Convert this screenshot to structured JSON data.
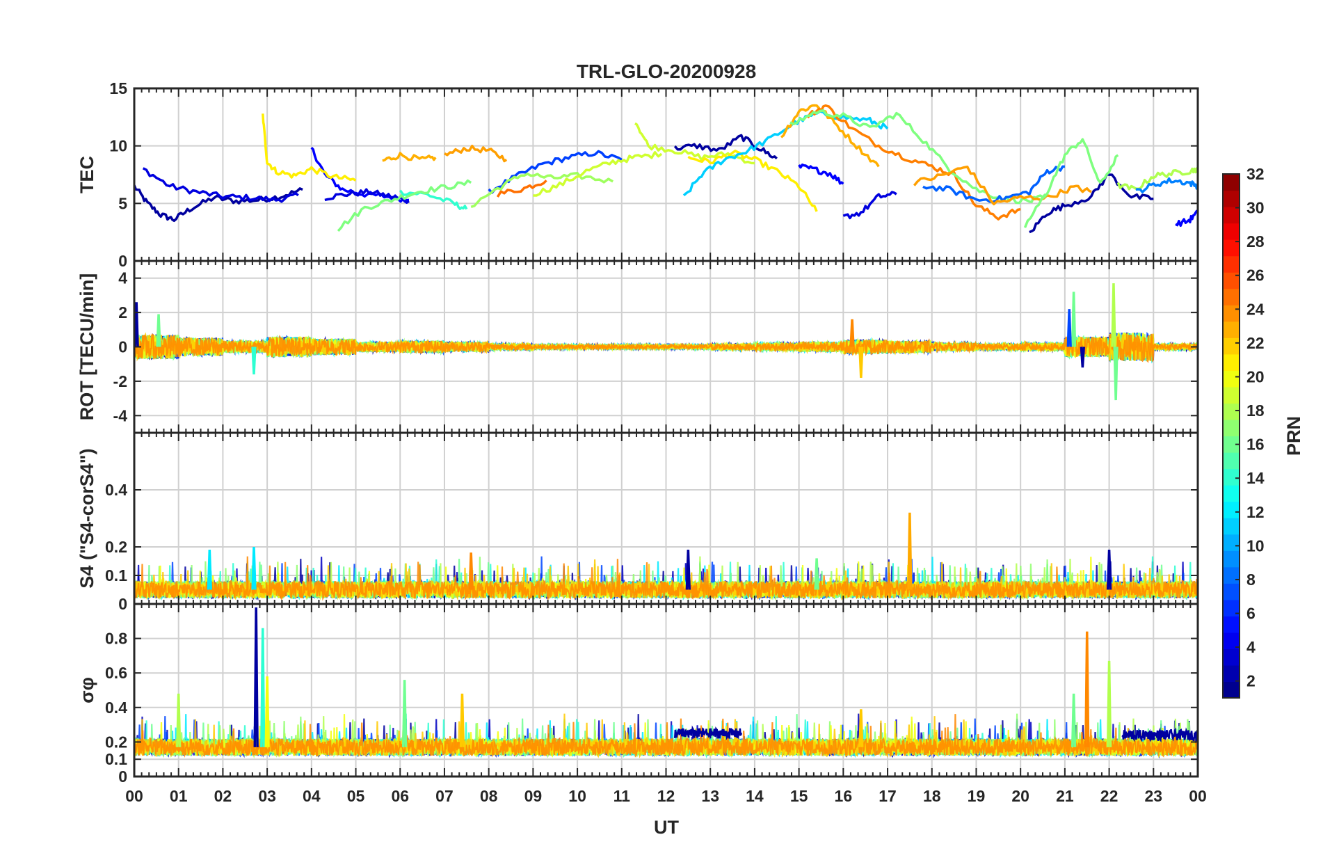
{
  "chart_data": {
    "type": "line",
    "title": "TRL-GLO-20200928",
    "xlabel": "UT",
    "x_tick_labels": [
      "00",
      "01",
      "02",
      "03",
      "04",
      "05",
      "06",
      "07",
      "08",
      "09",
      "10",
      "11",
      "12",
      "13",
      "14",
      "15",
      "16",
      "17",
      "18",
      "19",
      "20",
      "21",
      "22",
      "23",
      "00"
    ],
    "xlim": [
      0,
      24
    ],
    "colorbar": {
      "label": "PRN",
      "colormap": "jet",
      "range": [
        1,
        32
      ],
      "tick_labels": [
        "2",
        "4",
        "6",
        "8",
        "10",
        "12",
        "14",
        "16",
        "18",
        "20",
        "22",
        "24",
        "26",
        "28",
        "30",
        "32"
      ],
      "tick_values": [
        2,
        4,
        6,
        8,
        10,
        12,
        14,
        16,
        18,
        20,
        22,
        24,
        26,
        28,
        30,
        32
      ]
    },
    "panels": [
      {
        "id": "tec",
        "ylabel": "TEC",
        "ylim": [
          0,
          15
        ],
        "y_ticks": [
          0,
          5,
          10,
          15
        ],
        "y_tick_labels": [
          "0",
          "5",
          "10",
          "15"
        ],
        "series": [
          {
            "prn": 2,
            "color": "#00009f",
            "x": [
              0,
              0.3,
              0.6,
              0.9,
              1.3,
              1.8,
              2.3,
              2.8,
              3.3,
              3.8
            ],
            "y": [
              6.5,
              5.0,
              4.0,
              3.6,
              4.6,
              5.5,
              5.2,
              5.3,
              5.6,
              6.2
            ]
          },
          {
            "prn": 3,
            "color": "#0000df",
            "x": [
              0.2,
              0.8,
              1.4,
              2.0,
              2.6,
              3.2,
              3.7
            ],
            "y": [
              8.0,
              6.5,
              6.0,
              5.6,
              5.5,
              5.3,
              5.7
            ]
          },
          {
            "prn": 4,
            "color": "#0000ff",
            "x": [
              4.0,
              4.3,
              4.7,
              5.2,
              5.7,
              6.2
            ],
            "y": [
              9.8,
              7.5,
              6.2,
              5.8,
              5.6,
              5.3
            ]
          },
          {
            "prn": 3,
            "color": "#0000df",
            "x": [
              4.3,
              4.8,
              5.3,
              5.8,
              6.2
            ],
            "y": [
              5.5,
              5.8,
              6.0,
              5.6,
              5.2
            ]
          },
          {
            "prn": 14,
            "color": "#30ffcf",
            "x": [
              6.0,
              6.6,
              7.2,
              7.5
            ],
            "y": [
              6.0,
              5.8,
              5.0,
              4.5
            ]
          },
          {
            "prn": 7,
            "color": "#0040ff",
            "x": [
              8.0,
              8.6,
              9.2,
              9.8,
              10.4,
              11.0
            ],
            "y": [
              6.0,
              7.3,
              8.4,
              9.0,
              9.4,
              8.8
            ]
          },
          {
            "prn": 20,
            "color": "#ffef00",
            "x": [
              2.9,
              3.0,
              3.2,
              3.6,
              4.0,
              4.5,
              5.0
            ],
            "y": [
              12.7,
              8.6,
              7.8,
              7.4,
              8.0,
              7.3,
              7.0
            ]
          },
          {
            "prn": 22,
            "color": "#ffaf00",
            "x": [
              5.6,
              6.0,
              6.5,
              6.8
            ],
            "y": [
              8.7,
              9.2,
              8.8,
              9.0
            ]
          },
          {
            "prn": 23,
            "color": "#ff9f00",
            "x": [
              7.0,
              7.5,
              8.0,
              8.4
            ],
            "y": [
              9.2,
              9.8,
              9.6,
              8.8
            ]
          },
          {
            "prn": 25,
            "color": "#ff6f00",
            "x": [
              8.2,
              8.8,
              9.3
            ],
            "y": [
              5.8,
              6.3,
              7.0
            ]
          },
          {
            "prn": 16,
            "color": "#7fff7f",
            "x": [
              4.6,
              5.2,
              5.8,
              6.4,
              7.0,
              7.6
            ],
            "y": [
              2.8,
              4.6,
              5.3,
              6.0,
              6.4,
              6.8
            ]
          },
          {
            "prn": 17,
            "color": "#9fff5f",
            "x": [
              7.6,
              8.2,
              8.8,
              9.4,
              10.0,
              10.8
            ],
            "y": [
              4.8,
              6.3,
              7.6,
              7.2,
              7.4,
              6.9
            ]
          },
          {
            "prn": 19,
            "color": "#cfff30",
            "x": [
              9.0,
              9.6,
              10.2,
              10.8,
              11.3,
              11.9
            ],
            "y": [
              5.8,
              6.6,
              7.8,
              8.6,
              9.0,
              9.3
            ]
          },
          {
            "prn": 19,
            "color": "#cfff30",
            "x": [
              11.3,
              11.6,
              12.2,
              12.8,
              13.4,
              14.0
            ],
            "y": [
              12.2,
              10.0,
              9.6,
              9.0,
              9.3,
              8.5
            ]
          },
          {
            "prn": 2,
            "color": "#00009f",
            "x": [
              12.2,
              12.7,
              13.2,
              13.7,
              14.1,
              14.5
            ],
            "y": [
              9.8,
              10.0,
              9.6,
              10.8,
              9.8,
              8.9
            ]
          },
          {
            "prn": 20,
            "color": "#ffef00",
            "x": [
              12.5,
              13.0,
              13.5,
              14.0,
              14.5,
              15.0,
              15.4
            ],
            "y": [
              9.0,
              8.6,
              9.4,
              8.8,
              7.8,
              6.5,
              4.3
            ]
          },
          {
            "prn": 12,
            "color": "#00cfff",
            "x": [
              12.4,
              12.8,
              13.3,
              13.8,
              14.3,
              14.9,
              15.4,
              16.0,
              16.6,
              17.0
            ],
            "y": [
              5.5,
              7.5,
              8.8,
              9.5,
              10.5,
              12.0,
              12.8,
              12.5,
              12.2,
              11.5
            ]
          },
          {
            "prn": 4,
            "color": "#0000ff",
            "x": [
              15.0,
              15.3,
              15.7,
              16.0
            ],
            "y": [
              8.2,
              8.0,
              7.6,
              6.7
            ]
          },
          {
            "prn": 22,
            "color": "#ffaf00",
            "x": [
              14.6,
              15.0,
              15.4,
              15.8,
              16.3,
              16.8
            ],
            "y": [
              10.8,
              13.0,
              13.6,
              12.0,
              10.0,
              8.2
            ]
          },
          {
            "prn": 24,
            "color": "#ff7f00",
            "x": [
              15.2,
              15.6,
              16.2,
              16.8,
              17.4,
              18.0,
              18.5,
              19.0,
              19.5,
              20.0
            ],
            "y": [
              12.6,
              13.5,
              11.5,
              10.0,
              9.0,
              8.2,
              7.5,
              4.8,
              3.8,
              4.5
            ]
          },
          {
            "prn": 16,
            "color": "#7fff7f",
            "x": [
              14.8,
              15.4,
              16.0,
              16.6,
              17.2,
              17.8,
              18.4,
              19.0,
              19.6,
              20.2,
              20.6
            ],
            "y": [
              11.8,
              13.0,
              12.6,
              11.5,
              12.8,
              10.5,
              8.0,
              6.2,
              5.4,
              5.2,
              5.6
            ]
          },
          {
            "prn": 3,
            "color": "#0000df",
            "x": [
              16.0,
              16.4,
              16.8,
              17.2
            ],
            "y": [
              3.8,
              4.2,
              5.6,
              5.8
            ]
          },
          {
            "prn": 8,
            "color": "#0060ff",
            "x": [
              17.8,
              18.4,
              19.0,
              19.6,
              20.2,
              20.6,
              21.0
            ],
            "y": [
              6.5,
              6.2,
              5.3,
              5.4,
              6.0,
              7.8,
              8.2
            ]
          },
          {
            "prn": 23,
            "color": "#ff9f00",
            "x": [
              17.6,
              18.2,
              18.8,
              19.4,
              20.0,
              20.6,
              21.2,
              21.6
            ],
            "y": [
              6.8,
              7.4,
              8.2,
              5.0,
              5.5,
              5.5,
              6.4,
              6.0
            ]
          },
          {
            "prn": 2,
            "color": "#00009f",
            "x": [
              20.2,
              20.6,
              21.0,
              21.6,
              22.0,
              22.5,
              23.0
            ],
            "y": [
              2.4,
              4.2,
              4.8,
              5.6,
              7.6,
              5.6,
              5.4
            ]
          },
          {
            "prn": 16,
            "color": "#7fff7f",
            "x": [
              20.1,
              20.6,
              21.0,
              21.4,
              21.8,
              22.2
            ],
            "y": [
              3.0,
              6.0,
              9.2,
              10.6,
              6.6,
              9.2
            ]
          },
          {
            "prn": 18,
            "color": "#afff4f",
            "x": [
              22.2,
              22.6,
              23.0,
              23.4,
              23.8,
              24.0
            ],
            "y": [
              6.6,
              6.2,
              7.4,
              7.6,
              7.8,
              8.0
            ]
          },
          {
            "prn": 9,
            "color": "#0080ff",
            "x": [
              22.6,
              23.0,
              23.4,
              23.8,
              24.0
            ],
            "y": [
              6.0,
              6.6,
              7.0,
              6.8,
              6.5
            ]
          },
          {
            "prn": 4,
            "color": "#0000ff",
            "x": [
              23.5,
              23.8,
              24.0
            ],
            "y": [
              3.2,
              3.5,
              4.2
            ]
          }
        ]
      },
      {
        "id": "rot",
        "ylabel": "ROT [TECU/min]",
        "ylim": [
          -5,
          5
        ],
        "y_ticks": [
          -4,
          -2,
          0,
          2,
          4
        ],
        "y_tick_labels": [
          "-4",
          "-2",
          "0",
          "2",
          "4"
        ],
        "series_summary": {
          "baseline": 0,
          "noise_amplitude_by_hour": [
            1.2,
            0.9,
            0.6,
            1.0,
            0.8,
            0.5,
            0.6,
            0.5,
            0.3,
            0.2,
            0.2,
            0.2,
            0.2,
            0.3,
            0.4,
            0.5,
            0.7,
            0.6,
            0.4,
            0.3,
            0.4,
            1.0,
            1.4,
            0.3
          ],
          "spikes": [
            {
              "x": 0.05,
              "y": 2.6,
              "prn": 2
            },
            {
              "x": 0.55,
              "y": 1.9,
              "prn": 16
            },
            {
              "x": 2.7,
              "y": -1.6,
              "prn": 14
            },
            {
              "x": 16.2,
              "y": 1.6,
              "prn": 24
            },
            {
              "x": 16.4,
              "y": -1.8,
              "prn": 22
            },
            {
              "x": 21.2,
              "y": 3.2,
              "prn": 16
            },
            {
              "x": 21.1,
              "y": 2.2,
              "prn": 7
            },
            {
              "x": 22.1,
              "y": 3.7,
              "prn": 18
            },
            {
              "x": 22.15,
              "y": -3.1,
              "prn": 16
            },
            {
              "x": 21.4,
              "y": -1.2,
              "prn": 2
            }
          ]
        }
      },
      {
        "id": "s4",
        "ylabel": "S4 (\"S4-corS4\")",
        "ylim": [
          0,
          0.6
        ],
        "y_ticks": [
          0,
          0.1,
          0.2,
          0.4
        ],
        "y_tick_labels": [
          "0",
          "0.1",
          "0.2",
          "0.4"
        ],
        "series_summary": {
          "baseline_range": [
            0.02,
            0.08
          ],
          "spikes": [
            {
              "x": 2.7,
              "y": 0.2,
              "prn": 12
            },
            {
              "x": 1.7,
              "y": 0.19,
              "prn": 12
            },
            {
              "x": 7.6,
              "y": 0.18,
              "prn": 24
            },
            {
              "x": 12.5,
              "y": 0.19,
              "prn": 2
            },
            {
              "x": 17.5,
              "y": 0.32,
              "prn": 23
            },
            {
              "x": 22.0,
              "y": 0.19,
              "prn": 2
            },
            {
              "x": 15.4,
              "y": 0.16,
              "prn": 16
            }
          ]
        }
      },
      {
        "id": "sigma_phi",
        "ylabel": "σφ",
        "ylim": [
          0,
          1
        ],
        "y_ticks": [
          0,
          0.1,
          0.2,
          0.4,
          0.6,
          0.8
        ],
        "y_tick_labels": [
          "0",
          "0.1",
          "0.2",
          "0.4",
          "0.6",
          "0.8"
        ],
        "series_summary": {
          "baseline_range": [
            0.12,
            0.22
          ],
          "spikes": [
            {
              "x": 2.75,
              "y": 0.98,
              "prn": 2
            },
            {
              "x": 2.9,
              "y": 0.86,
              "prn": 14
            },
            {
              "x": 3.0,
              "y": 0.58,
              "prn": 20
            },
            {
              "x": 1.0,
              "y": 0.48,
              "prn": 18
            },
            {
              "x": 6.1,
              "y": 0.56,
              "prn": 16
            },
            {
              "x": 7.4,
              "y": 0.48,
              "prn": 22
            },
            {
              "x": 16.4,
              "y": 0.39,
              "prn": 22
            },
            {
              "x": 21.5,
              "y": 0.84,
              "prn": 24
            },
            {
              "x": 22.0,
              "y": 0.67,
              "prn": 18
            },
            {
              "x": 21.2,
              "y": 0.48,
              "prn": 16
            }
          ],
          "elevated_segments": [
            {
              "x_start": 12.2,
              "x_end": 13.7,
              "level": 0.25,
              "prn": 2
            },
            {
              "x_start": 22.3,
              "x_end": 24.0,
              "level": 0.24,
              "prn": 2
            }
          ]
        }
      }
    ]
  }
}
